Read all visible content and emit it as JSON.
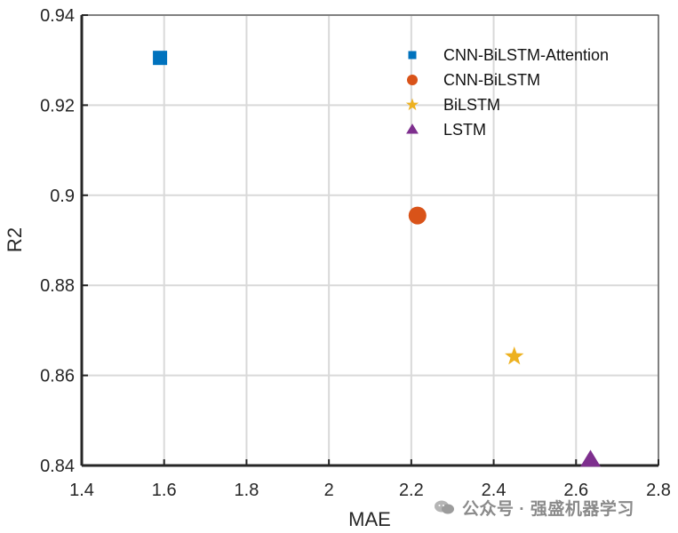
{
  "chart_data": {
    "type": "scatter",
    "xlabel": "MAE",
    "ylabel": "R2",
    "xlim": [
      1.4,
      2.8
    ],
    "ylim": [
      0.84,
      0.94
    ],
    "x_ticks": [
      "1.4",
      "1.6",
      "1.8",
      "2",
      "2.2",
      "2.4",
      "2.6",
      "2.8"
    ],
    "y_ticks": [
      "0.84",
      "0.86",
      "0.88",
      "0.9",
      "0.92",
      "0.94"
    ],
    "grid": true,
    "legend_position": "top-right",
    "series": [
      {
        "name": "CNN-BiLSTM-Attention",
        "x": 1.59,
        "y": 0.9305,
        "marker": "square",
        "color": "#0072BD"
      },
      {
        "name": "CNN-BiLSTM",
        "x": 2.215,
        "y": 0.8955,
        "marker": "circle",
        "color": "#D95319"
      },
      {
        "name": "BiLSTM",
        "x": 2.45,
        "y": 0.8642,
        "marker": "star",
        "color": "#EDB120"
      },
      {
        "name": "LSTM",
        "x": 2.635,
        "y": 0.8412,
        "marker": "triangle",
        "color": "#7E2F8E"
      }
    ]
  },
  "watermark": {
    "text": "公众号 · 强盛机器学习",
    "icon": "wechat-icon"
  }
}
